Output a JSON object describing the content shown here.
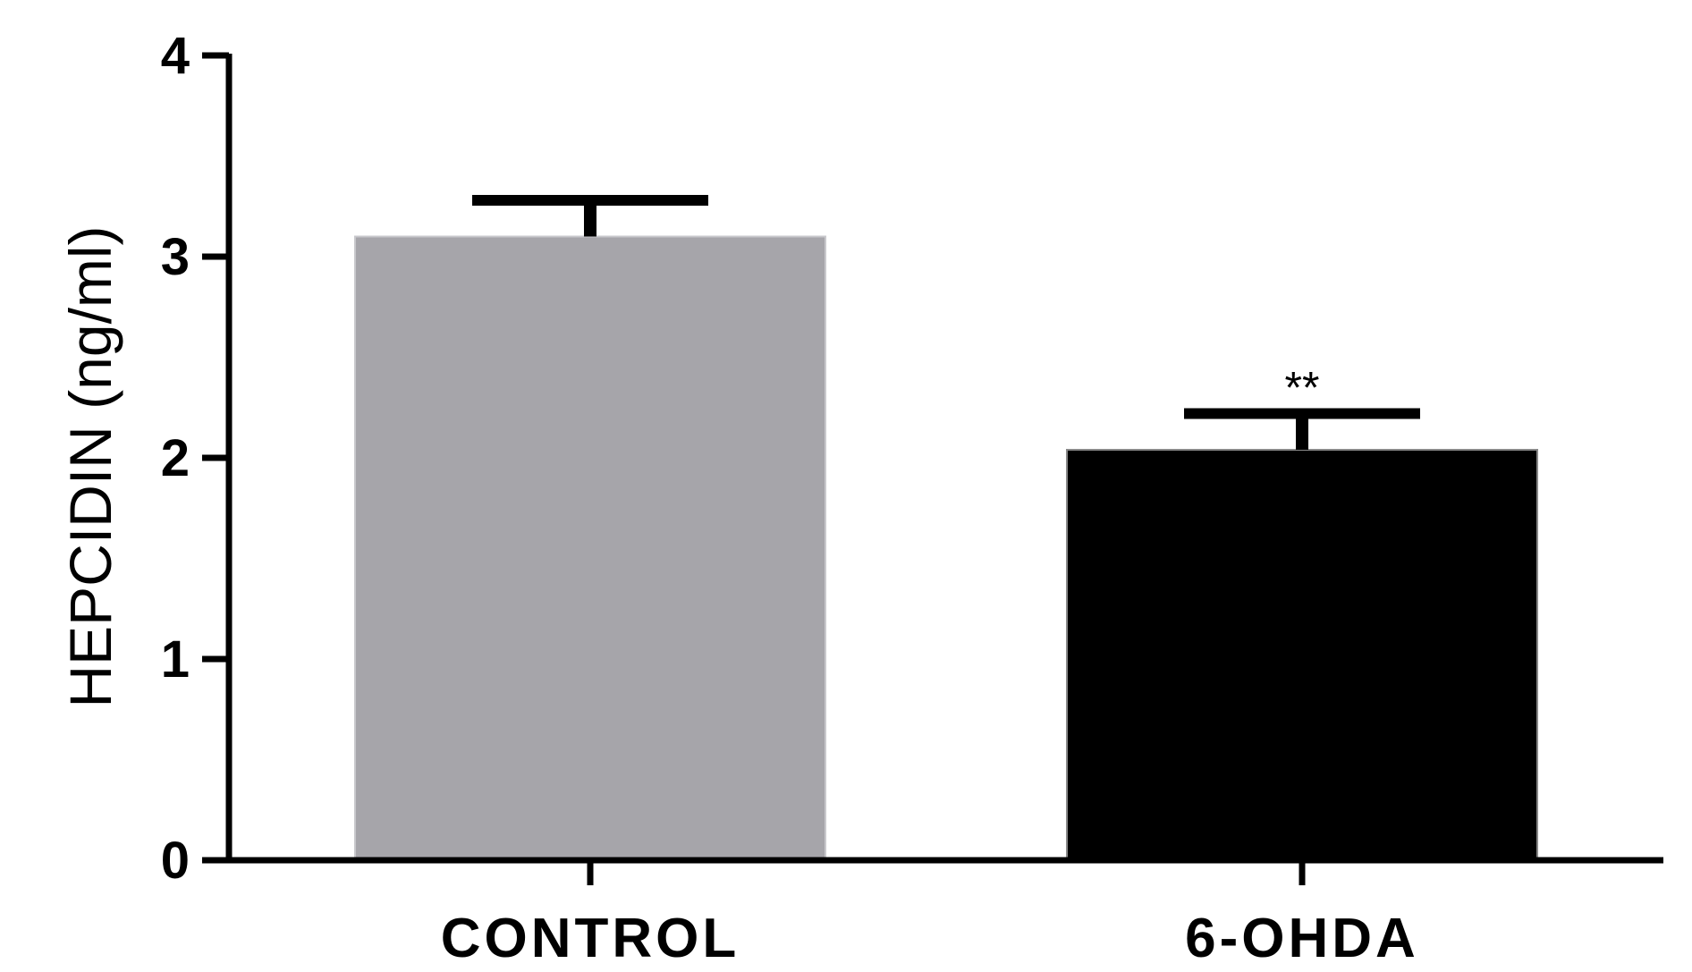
{
  "chart_data": {
    "type": "bar",
    "categories": [
      "CONTROL",
      "6-OHDA"
    ],
    "values": [
      3.1,
      2.04
    ],
    "error": [
      0.18,
      0.18
    ],
    "annotations": [
      "",
      "**"
    ],
    "colors": [
      "#a6a5aa",
      "#000000"
    ],
    "ylabel": "HEPCIDIN (ng/ml)",
    "xlabel": "",
    "ylim": [
      0,
      4
    ],
    "yticks": [
      "0",
      "1",
      "2",
      "3",
      "4"
    ],
    "grid": false
  }
}
